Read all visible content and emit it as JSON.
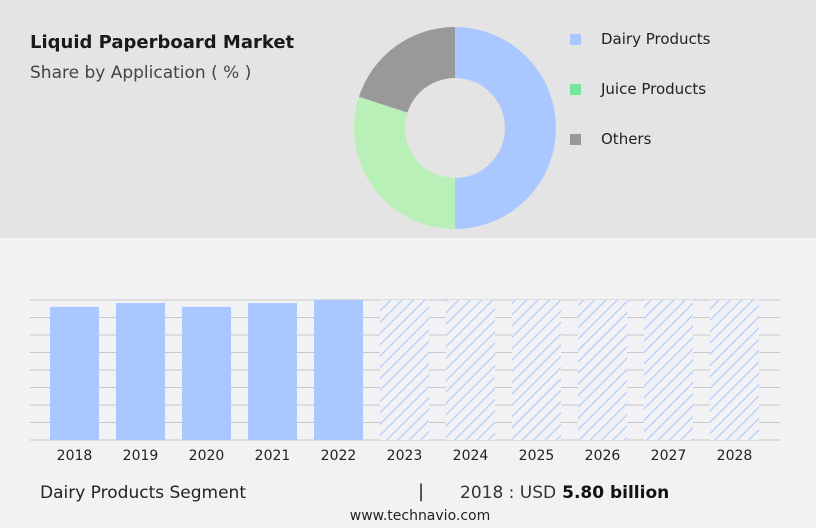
{
  "header": {
    "title": "Liquid Paperboard Market",
    "subtitle": "Share by Application ( % )"
  },
  "chart_data": [
    {
      "type": "pie",
      "subtype": "donut",
      "categories": [
        "Dairy Products",
        "Juice Products",
        "Others"
      ],
      "values": [
        50,
        30,
        20
      ],
      "colors": [
        "#a8c8ff",
        "#b8f0b8",
        "#999999"
      ],
      "legend_colors": [
        "#a8c8ff",
        "#74e69a",
        "#999999"
      ],
      "legend": "right"
    },
    {
      "type": "bar",
      "categories": [
        "2018",
        "2019",
        "2020",
        "2021",
        "2022",
        "2023",
        "2024",
        "2025",
        "2026",
        "2027",
        "2028"
      ],
      "values": [
        5.8,
        5.97,
        5.8,
        5.97,
        6.1,
        null,
        null,
        null,
        null,
        null,
        null
      ],
      "forecast": [
        "2023",
        "2024",
        "2025",
        "2026",
        "2027",
        "2028"
      ],
      "ylim": [
        0,
        6.1
      ],
      "grid": true,
      "color": "#a8c8ff"
    }
  ],
  "footer": {
    "segment": "Dairy Products Segment",
    "separator": "|",
    "year_label": "2018 : USD",
    "value": "5.80 billion",
    "site": "www.technavio.com"
  }
}
